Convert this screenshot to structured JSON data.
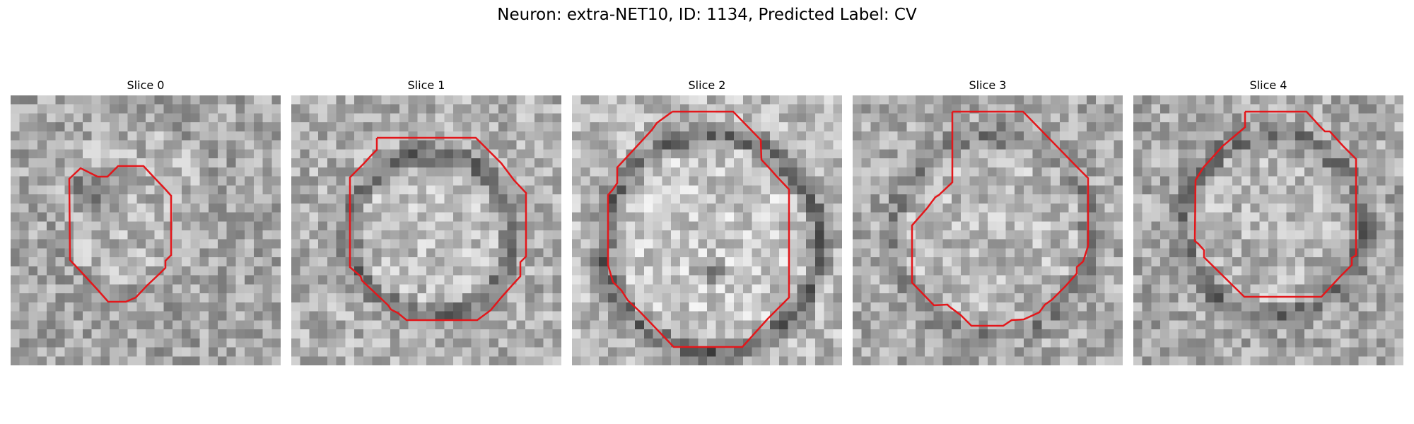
{
  "figure": {
    "title": "Neuron: extra-NET10, ID: 1134, Predicted Label: CV",
    "outline_color": "#e3171b",
    "colormap": "gray",
    "panels": [
      {
        "label": "Slice 0"
      },
      {
        "label": "Slice 1"
      },
      {
        "label": "Slice 2"
      },
      {
        "label": "Slice 3"
      },
      {
        "label": "Slice 4"
      }
    ]
  }
}
